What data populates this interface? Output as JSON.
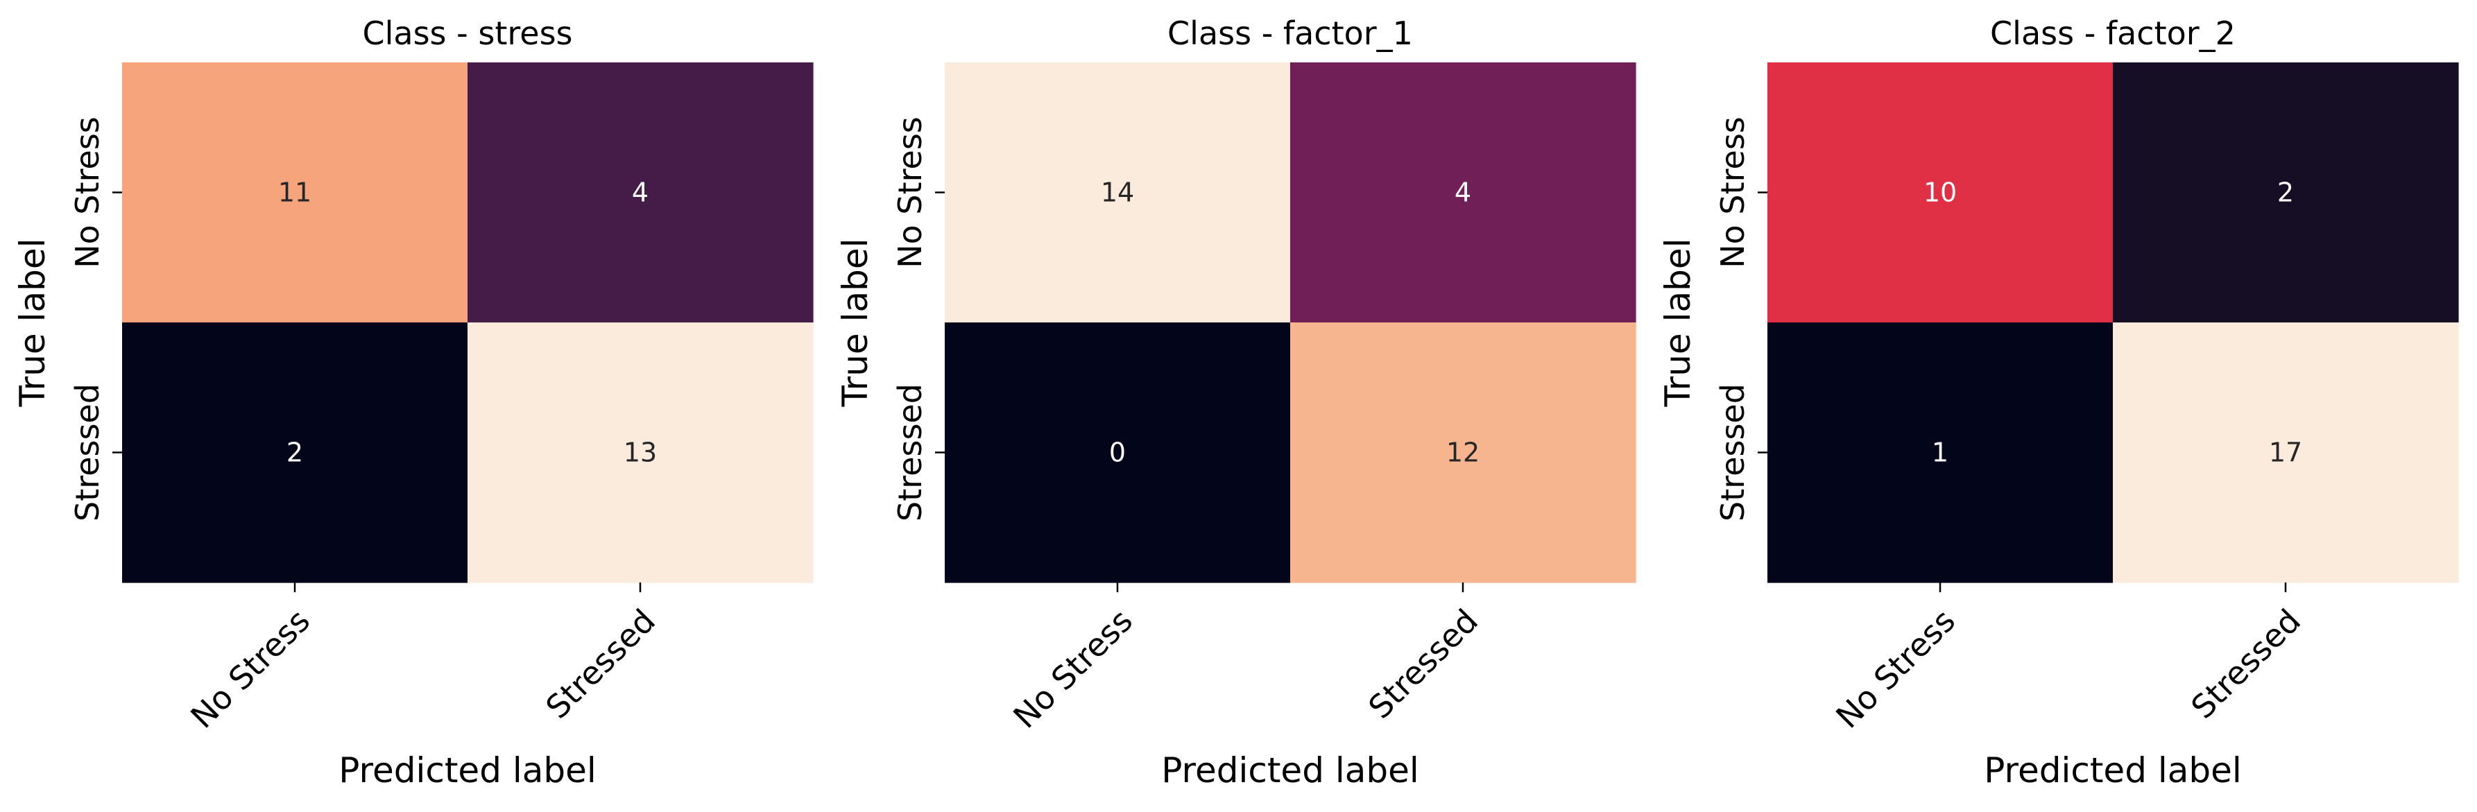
{
  "chart_data": [
    {
      "type": "heatmap",
      "title": "Class - stress",
      "xlabel": "Predicted label",
      "ylabel": "True label",
      "x_categories": [
        "No Stress",
        "Stressed"
      ],
      "y_categories": [
        "No Stress",
        "Stressed"
      ],
      "values": [
        [
          11,
          4
        ],
        [
          2,
          13
        ]
      ],
      "cell_colors": [
        [
          "#f5a47c",
          "#451c47"
        ],
        [
          "#03051a",
          "#faebdd"
        ]
      ],
      "text_colors": [
        [
          "#262626",
          "#ffffff"
        ],
        [
          "#ffffff",
          "#262626"
        ]
      ],
      "colorbar": false
    },
    {
      "type": "heatmap",
      "title": "Class - factor_1",
      "xlabel": "Predicted label",
      "ylabel": "True label",
      "x_categories": [
        "No Stress",
        "Stressed"
      ],
      "y_categories": [
        "No Stress",
        "Stressed"
      ],
      "values": [
        [
          14,
          4
        ],
        [
          0,
          12
        ]
      ],
      "cell_colors": [
        [
          "#faebdd",
          "#701f57"
        ],
        [
          "#03051a",
          "#f6b48f"
        ]
      ],
      "text_colors": [
        [
          "#262626",
          "#ffffff"
        ],
        [
          "#ffffff",
          "#262626"
        ]
      ],
      "colorbar": false
    },
    {
      "type": "heatmap",
      "title": "Class - factor_2",
      "xlabel": "Predicted label",
      "ylabel": "True label",
      "x_categories": [
        "No Stress",
        "Stressed"
      ],
      "y_categories": [
        "No Stress",
        "Stressed"
      ],
      "values": [
        [
          10,
          2
        ],
        [
          1,
          17
        ]
      ],
      "cell_colors": [
        [
          "#e03045",
          "#160e24"
        ],
        [
          "#03051a",
          "#faebdd"
        ]
      ],
      "text_colors": [
        [
          "#ffffff",
          "#ffffff"
        ],
        [
          "#ffffff",
          "#262626"
        ]
      ],
      "colorbar": false
    }
  ]
}
